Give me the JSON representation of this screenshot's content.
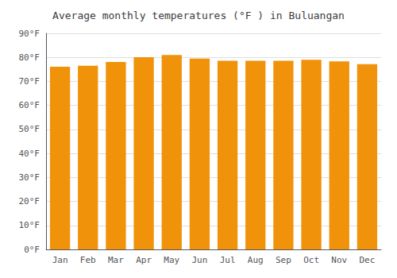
{
  "chart_data": {
    "type": "bar",
    "title": "Average monthly temperatures (°F ) in Buluangan",
    "categories": [
      "Jan",
      "Feb",
      "Mar",
      "Apr",
      "May",
      "Jun",
      "Jul",
      "Aug",
      "Sep",
      "Oct",
      "Nov",
      "Dec"
    ],
    "values": [
      76.1,
      76.5,
      78.1,
      80.1,
      81.0,
      79.5,
      78.6,
      78.6,
      78.6,
      79.0,
      78.3,
      77.2
    ],
    "color": "#F0930A",
    "ylim": [
      0,
      90
    ],
    "yticks": [
      {
        "value": 0,
        "label": "0°F"
      },
      {
        "value": 10,
        "label": "10°F"
      },
      {
        "value": 20,
        "label": "20°F"
      },
      {
        "value": 30,
        "label": "30°F"
      },
      {
        "value": 40,
        "label": "40°F"
      },
      {
        "value": 50,
        "label": "50°F"
      },
      {
        "value": 60,
        "label": "60°F"
      },
      {
        "value": 70,
        "label": "70°F"
      },
      {
        "value": 80,
        "label": "80°F"
      },
      {
        "value": 90,
        "label": "90°F"
      }
    ],
    "grid": true
  }
}
